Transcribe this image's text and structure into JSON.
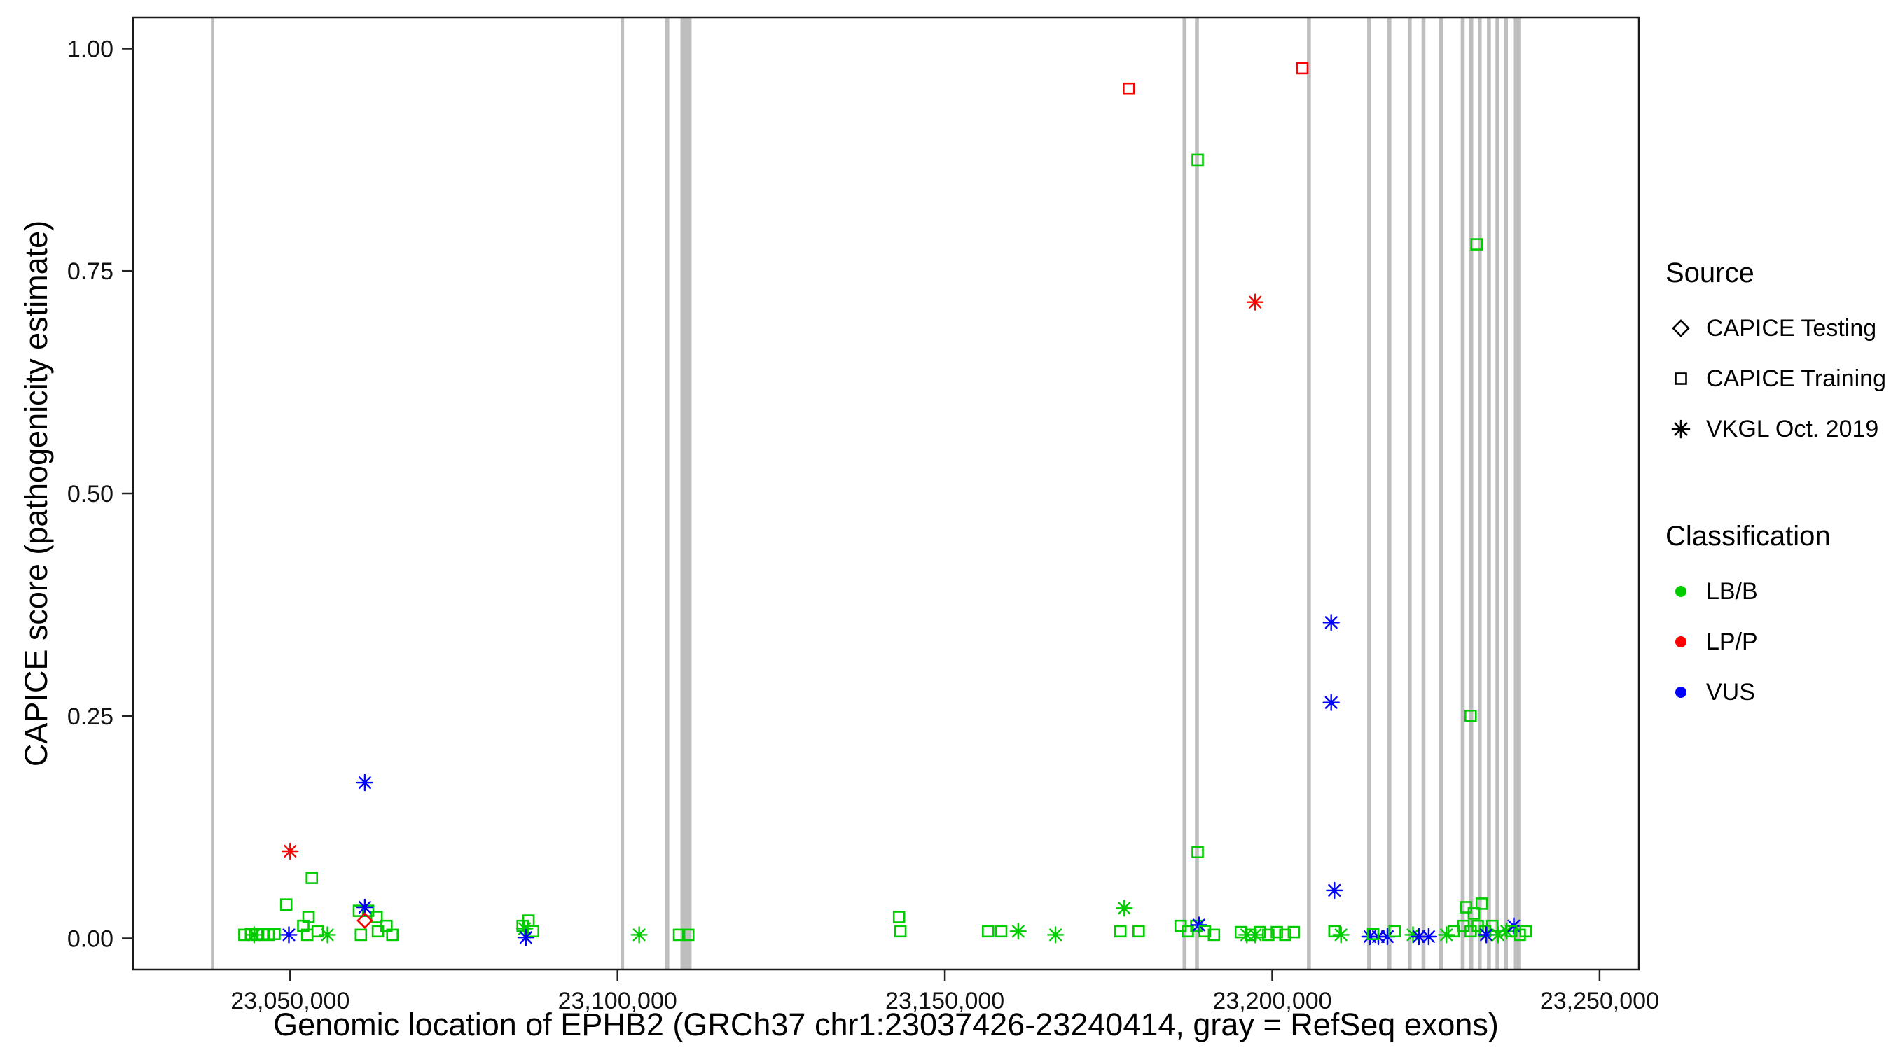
{
  "chart_data": {
    "type": "scatter",
    "title": "",
    "xlabel": "Genomic location of EPHB2 (GRCh37 chr1:23037426-23240414, gray = RefSeq exons)",
    "ylabel": "CAPICE score (pathogenicity estimate)",
    "xlim": [
      23026000,
      23256000
    ],
    "ylim": [
      -0.035,
      1.035
    ],
    "grid": false,
    "legend_position": "right",
    "x_ticks": [
      {
        "v": 23050000,
        "label": "23,050,000"
      },
      {
        "v": 23100000,
        "label": "23,100,000"
      },
      {
        "v": 23150000,
        "label": "23,150,000"
      },
      {
        "v": 23200000,
        "label": "23,200,000"
      },
      {
        "v": 23250000,
        "label": "23,250,000"
      }
    ],
    "y_ticks": [
      {
        "v": 0,
        "label": "0.00"
      },
      {
        "v": 0.25,
        "label": "0.25"
      },
      {
        "v": 0.5,
        "label": "0.50"
      },
      {
        "v": 0.75,
        "label": "0.75"
      },
      {
        "v": 1,
        "label": "1.00"
      }
    ],
    "exon_color": "#BEBEBE",
    "exons": [
      [
        23037900,
        23038400
      ],
      [
        23100500,
        23101000
      ],
      [
        23107300,
        23107900
      ],
      [
        23109600,
        23111300
      ],
      [
        23186300,
        23186900
      ],
      [
        23188200,
        23188800
      ],
      [
        23205300,
        23205900
      ],
      [
        23214500,
        23215100
      ],
      [
        23217600,
        23218200
      ],
      [
        23220700,
        23221300
      ],
      [
        23222800,
        23223400
      ],
      [
        23225500,
        23226100
      ],
      [
        23228800,
        23229400
      ],
      [
        23230100,
        23230700
      ],
      [
        23231400,
        23232000
      ],
      [
        23232800,
        23233400
      ],
      [
        23234100,
        23234700
      ],
      [
        23235400,
        23236000
      ],
      [
        23236800,
        23237900
      ]
    ],
    "shape_codes": {
      "s": "square-open",
      "d": "diamond-open",
      "a": "asterisk"
    },
    "color_codes": {
      "g": "#00CC00",
      "r": "#FF0000",
      "b": "#0000FF"
    },
    "point_fields": [
      "genomic_position",
      "capice_score",
      "source (s=CAPICE Training, d=CAPICE Testing, a=VKGL Oct. 2019)",
      "classification (g=LB/B, r=LP/P, b=VUS)"
    ],
    "points": [
      [
        23178100,
        0.955,
        "s",
        "r"
      ],
      [
        23204600,
        0.978,
        "s",
        "r"
      ],
      [
        23188600,
        0.875,
        "s",
        "g"
      ],
      [
        23197400,
        0.715,
        "a",
        "r"
      ],
      [
        23231200,
        0.78,
        "s",
        "g"
      ],
      [
        23209000,
        0.355,
        "a",
        "b"
      ],
      [
        23209000,
        0.265,
        "a",
        "b"
      ],
      [
        23230300,
        0.25,
        "s",
        "g"
      ],
      [
        23061400,
        0.175,
        "a",
        "b"
      ],
      [
        23050000,
        0.098,
        "a",
        "r"
      ],
      [
        23188600,
        0.097,
        "s",
        "g"
      ],
      [
        23053300,
        0.068,
        "s",
        "g"
      ],
      [
        23209500,
        0.054,
        "a",
        "b"
      ],
      [
        23043000,
        0.004,
        "s",
        "g"
      ],
      [
        23044000,
        0.005,
        "s",
        "g"
      ],
      [
        23044900,
        0.004,
        "s",
        "g"
      ],
      [
        23045800,
        0.005,
        "s",
        "g"
      ],
      [
        23046700,
        0.004,
        "s",
        "g"
      ],
      [
        23047600,
        0.005,
        "s",
        "g"
      ],
      [
        23044500,
        0.004,
        "a",
        "g"
      ],
      [
        23049400,
        0.038,
        "s",
        "g"
      ],
      [
        23049800,
        0.004,
        "a",
        "b"
      ],
      [
        23052000,
        0.014,
        "s",
        "g"
      ],
      [
        23052800,
        0.024,
        "s",
        "g"
      ],
      [
        23052600,
        0.004,
        "s",
        "g"
      ],
      [
        23054200,
        0.008,
        "s",
        "g"
      ],
      [
        23055700,
        0.004,
        "a",
        "g"
      ],
      [
        23060500,
        0.031,
        "s",
        "g"
      ],
      [
        23061900,
        0.031,
        "s",
        "g"
      ],
      [
        23063200,
        0.024,
        "s",
        "g"
      ],
      [
        23061400,
        0.035,
        "a",
        "b"
      ],
      [
        23061400,
        0.02,
        "d",
        "r"
      ],
      [
        23060800,
        0.004,
        "s",
        "g"
      ],
      [
        23063400,
        0.008,
        "s",
        "g"
      ],
      [
        23064700,
        0.014,
        "s",
        "g"
      ],
      [
        23065600,
        0.004,
        "s",
        "g"
      ],
      [
        23085500,
        0.014,
        "s",
        "g"
      ],
      [
        23086400,
        0.02,
        "s",
        "g"
      ],
      [
        23087100,
        0.008,
        "s",
        "g"
      ],
      [
        23085800,
        0.011,
        "a",
        "g"
      ],
      [
        23086000,
        0.001,
        "a",
        "b"
      ],
      [
        23103300,
        0.004,
        "a",
        "g"
      ],
      [
        23109400,
        0.004,
        "s",
        "g"
      ],
      [
        23110800,
        0.004,
        "s",
        "g"
      ],
      [
        23143000,
        0.024,
        "s",
        "g"
      ],
      [
        23143200,
        0.008,
        "s",
        "g"
      ],
      [
        23156600,
        0.008,
        "s",
        "g"
      ],
      [
        23158600,
        0.008,
        "s",
        "g"
      ],
      [
        23161200,
        0.008,
        "a",
        "g"
      ],
      [
        23166900,
        0.004,
        "a",
        "g"
      ],
      [
        23177400,
        0.034,
        "a",
        "g"
      ],
      [
        23176800,
        0.008,
        "s",
        "g"
      ],
      [
        23179600,
        0.008,
        "s",
        "g"
      ],
      [
        23186000,
        0.014,
        "s",
        "g"
      ],
      [
        23187100,
        0.008,
        "s",
        "g"
      ],
      [
        23188400,
        0.014,
        "s",
        "g"
      ],
      [
        23188800,
        0.015,
        "a",
        "b"
      ],
      [
        23189700,
        0.008,
        "s",
        "g"
      ],
      [
        23191100,
        0.004,
        "s",
        "g"
      ],
      [
        23195200,
        0.007,
        "s",
        "g"
      ],
      [
        23196700,
        0.004,
        "s",
        "g"
      ],
      [
        23198100,
        0.007,
        "s",
        "g"
      ],
      [
        23199400,
        0.004,
        "s",
        "g"
      ],
      [
        23200700,
        0.007,
        "s",
        "g"
      ],
      [
        23202000,
        0.004,
        "s",
        "g"
      ],
      [
        23203300,
        0.007,
        "s",
        "g"
      ],
      [
        23196100,
        0.004,
        "a",
        "g"
      ],
      [
        23197400,
        0.004,
        "a",
        "g"
      ],
      [
        23209500,
        0.008,
        "s",
        "g"
      ],
      [
        23210500,
        0.004,
        "a",
        "g"
      ],
      [
        23214900,
        0.002,
        "a",
        "b"
      ],
      [
        23216200,
        0.002,
        "a",
        "b"
      ],
      [
        23215400,
        0.005,
        "s",
        "g"
      ],
      [
        23217600,
        0.002,
        "a",
        "b"
      ],
      [
        23218700,
        0.008,
        "s",
        "g"
      ],
      [
        23221500,
        0.004,
        "a",
        "g"
      ],
      [
        23222400,
        0.002,
        "a",
        "b"
      ],
      [
        23223900,
        0.002,
        "a",
        "b"
      ],
      [
        23226600,
        0.004,
        "a",
        "g"
      ],
      [
        23227700,
        0.008,
        "s",
        "g"
      ],
      [
        23229600,
        0.035,
        "s",
        "g"
      ],
      [
        23230800,
        0.028,
        "s",
        "g"
      ],
      [
        23232000,
        0.039,
        "s",
        "g"
      ],
      [
        23229200,
        0.014,
        "s",
        "g"
      ],
      [
        23230300,
        0.008,
        "s",
        "g"
      ],
      [
        23231400,
        0.014,
        "s",
        "g"
      ],
      [
        23232500,
        0.008,
        "s",
        "g"
      ],
      [
        23233600,
        0.014,
        "s",
        "g"
      ],
      [
        23232700,
        0.004,
        "a",
        "b"
      ],
      [
        23234500,
        0.004,
        "a",
        "g"
      ],
      [
        23235800,
        0.008,
        "a",
        "g"
      ],
      [
        23236900,
        0.014,
        "a",
        "b"
      ],
      [
        23236500,
        0.008,
        "s",
        "g"
      ],
      [
        23237800,
        0.004,
        "s",
        "g"
      ],
      [
        23238700,
        0.008,
        "s",
        "g"
      ]
    ]
  },
  "legend": {
    "source": {
      "title": "Source",
      "items": [
        {
          "label": "CAPICE Testing",
          "shape": "diamond-open"
        },
        {
          "label": "CAPICE Training",
          "shape": "square-open"
        },
        {
          "label": "VKGL Oct. 2019",
          "shape": "asterisk"
        }
      ]
    },
    "classification": {
      "title": "Classification",
      "items": [
        {
          "label": "LB/B",
          "color": "#00CC00"
        },
        {
          "label": "LP/P",
          "color": "#FF0000"
        },
        {
          "label": "VUS",
          "color": "#0000FF"
        }
      ]
    }
  }
}
